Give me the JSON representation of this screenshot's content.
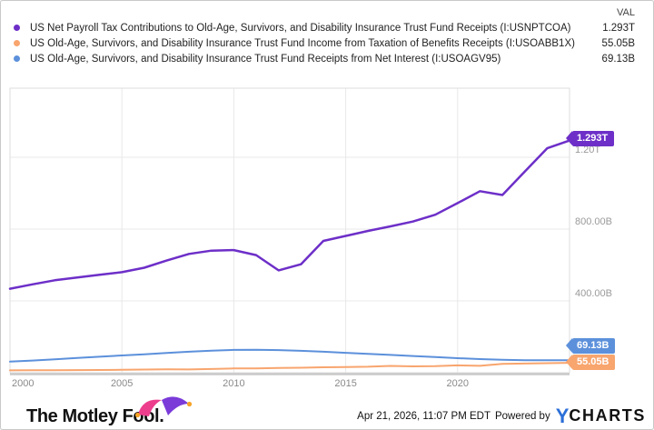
{
  "legend": {
    "val_header": "VAL"
  },
  "chart_data": {
    "type": "line",
    "unit": "USD billions",
    "x": [
      2000,
      2001,
      2002,
      2003,
      2004,
      2005,
      2006,
      2007,
      2008,
      2009,
      2010,
      2011,
      2012,
      2013,
      2014,
      2015,
      2016,
      2017,
      2018,
      2019,
      2020,
      2021,
      2022,
      2023,
      2024,
      2025
    ],
    "series": [
      {
        "id": "payroll",
        "name": "US Net Payroll Tax Contributions to Old-Age, Survivors, and Disability Insurance Trust Fund Receipts (I:USNPTCOA)",
        "end_label": "1.293T",
        "color": "#6D2FC8",
        "width": 2.5,
        "values": [
          468,
          492,
          515,
          530,
          546,
          560,
          585,
          625,
          662,
          680,
          683,
          655,
          570,
          604,
          734,
          762,
          790,
          815,
          842,
          880,
          945,
          1011,
          990,
          1120,
          1250,
          1293
        ]
      },
      {
        "id": "taxation",
        "name": "US Old-Age, Survivors, and Disability Insurance Trust Fund Income from Taxation of Benefits Receipts (I:USOABB1X)",
        "end_label": "55.05B",
        "color": "#F8A56E",
        "width": 2,
        "values": [
          13,
          13.5,
          14,
          14.5,
          15,
          16,
          17.5,
          19,
          18,
          21,
          24,
          24.5,
          27,
          28,
          30.5,
          32,
          33.5,
          38,
          35.5,
          36.5,
          41,
          38.5,
          49,
          51,
          53,
          55.05
        ]
      },
      {
        "id": "interest",
        "name": "US Old-Age, Survivors, and Disability Insurance Trust Fund Receipts from Net Interest (I:USOAGV95)",
        "end_label": "69.13B",
        "color": "#5C90DB",
        "width": 2,
        "values": [
          62,
          68,
          75,
          82,
          89,
          96,
          103,
          110,
          117,
          123,
          127,
          128,
          126,
          122,
          117,
          111,
          105,
          99,
          93,
          87,
          81,
          76,
          72,
          70,
          69.5,
          69.13
        ]
      }
    ],
    "x_ticks": [
      2000,
      2005,
      2010,
      2015,
      2020
    ],
    "y_ticks": [
      {
        "label": "1.20T",
        "value": 1200
      },
      {
        "label": "800.00B",
        "value": 800
      },
      {
        "label": "400.00B",
        "value": 400
      }
    ],
    "xlim": [
      2000,
      2025
    ],
    "ylim": [
      0,
      1585
    ],
    "grid": true,
    "legend_position": "top"
  },
  "footer": {
    "brand": "The Motley Fool.",
    "timestamp": "Apr 21, 2026, 11:07 PM EDT",
    "powered_by": "Powered by",
    "ycharts_y": "Y",
    "ycharts_rest": "CHARTS",
    "ycharts_blue": "#2B6FD8"
  }
}
